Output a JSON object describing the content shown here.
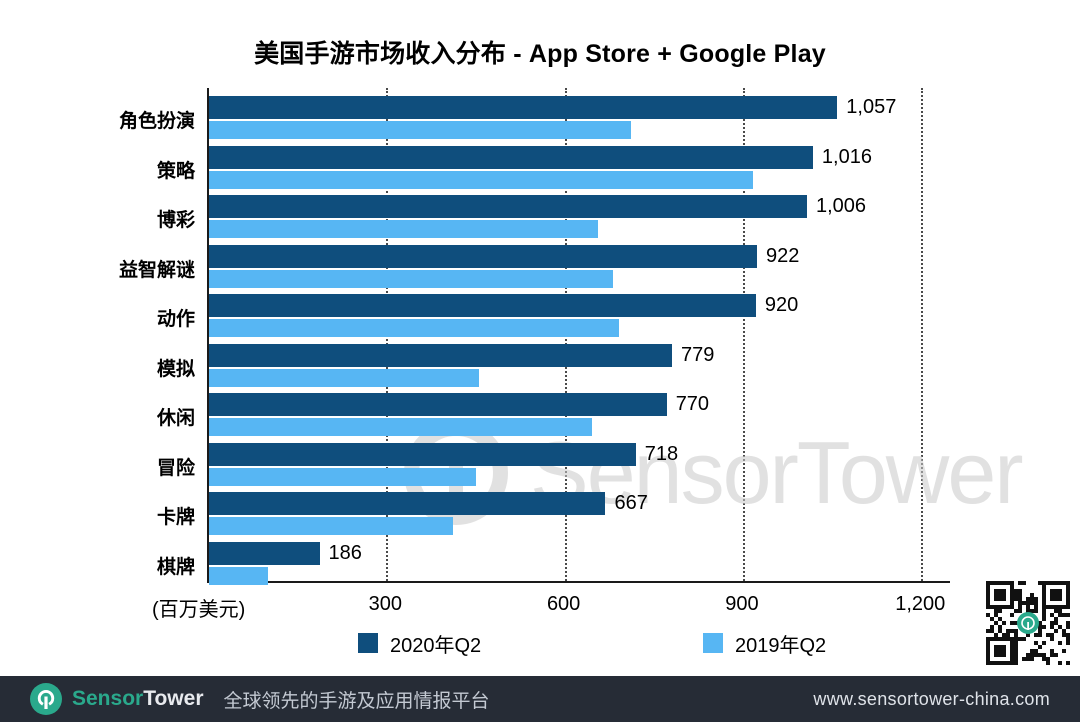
{
  "chart_data": {
    "type": "bar",
    "orientation": "horizontal",
    "title": "美国手游市场收入分布 - App Store + Google Play",
    "xlabel": "(百万美元)",
    "x_ticks": [
      300,
      600,
      900,
      1200
    ],
    "x_tick_labels": [
      "300",
      "600",
      "900",
      "1,200"
    ],
    "xlim": [
      0,
      1250
    ],
    "grid": "dotted-vertical",
    "legend_position": "bottom",
    "categories": [
      "角色扮演",
      "策略",
      "博彩",
      "益智解谜",
      "动作",
      "模拟",
      "休闲",
      "冒险",
      "卡牌",
      "棋牌"
    ],
    "series": [
      {
        "name": "2020年Q2",
        "color": "#0f4e7d",
        "values": [
          1057,
          1016,
          1006,
          922,
          920,
          779,
          770,
          718,
          667,
          186
        ],
        "value_labels": [
          "1,057",
          "1,016",
          "1,006",
          "922",
          "920",
          "779",
          "770",
          "718",
          "667",
          "186"
        ]
      },
      {
        "name": "2019年Q2",
        "color": "#57b6f3",
        "values": [
          710,
          915,
          655,
          680,
          690,
          455,
          645,
          450,
          410,
          100
        ],
        "value_labels": null,
        "values_estimated": true
      }
    ]
  },
  "legend": {
    "items": [
      {
        "label": "2020年Q2",
        "color": "#0f4e7d"
      },
      {
        "label": "2019年Q2",
        "color": "#57b6f3"
      }
    ]
  },
  "watermark": {
    "text": "SensorTower"
  },
  "footer": {
    "brand_sensor": "Sensor",
    "brand_tower": "Tower",
    "tagline": "全球领先的手游及应用情报平台",
    "url": "www.sensortower-china.com",
    "background": "#262c36",
    "brand_color": "#2aa98c"
  }
}
